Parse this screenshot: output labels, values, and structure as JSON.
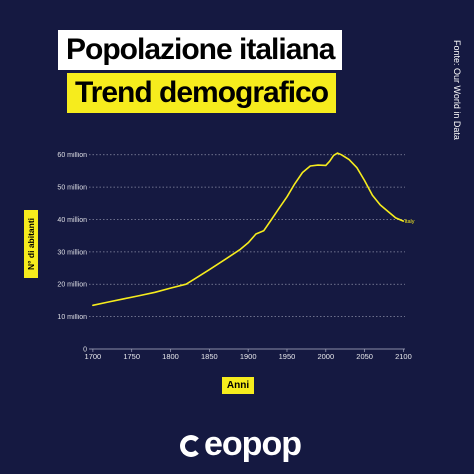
{
  "header": {
    "title": "Popolazione italiana",
    "subtitle": "Trend demografico"
  },
  "source": "Fonte: Our World in Data",
  "logo": {
    "text": "eopop",
    "accessible_name": "Geopop"
  },
  "colors": {
    "background": "#151941",
    "accent": "#f6ec1d",
    "line": "#f6ec1d",
    "grid": "#a8aac0",
    "text": "#ffffff"
  },
  "chart_data": {
    "type": "line",
    "title": "",
    "xlabel": "Anni",
    "ylabel": "N° di abitanti",
    "xlim": [
      1695,
      2102
    ],
    "ylim": [
      0,
      63
    ],
    "x_ticks": [
      1700,
      1750,
      1800,
      1850,
      1900,
      1950,
      2000,
      2050,
      2100
    ],
    "y_ticks": [
      0,
      10,
      20,
      30,
      40,
      50,
      60
    ],
    "y_tick_labels": [
      "0",
      "10 million",
      "20 million",
      "30 million",
      "40 million",
      "50 million",
      "60 million"
    ],
    "grid": "horizontal dotted",
    "series": [
      {
        "name": "Italy",
        "x": [
          1700,
          1720,
          1740,
          1760,
          1780,
          1800,
          1820,
          1830,
          1850,
          1870,
          1890,
          1900,
          1910,
          1920,
          1930,
          1940,
          1950,
          1960,
          1970,
          1975,
          1980,
          1990,
          2000,
          2005,
          2010,
          2015,
          2020,
          2030,
          2040,
          2050,
          2060,
          2070,
          2080,
          2090,
          2100
        ],
        "values": [
          13.5,
          14.5,
          15.5,
          16.5,
          17.5,
          18.8,
          20.0,
          21.5,
          24.5,
          27.6,
          30.8,
          32.8,
          35.5,
          36.5,
          40.0,
          43.5,
          47.0,
          51.0,
          54.5,
          55.5,
          56.5,
          56.8,
          56.7,
          58.0,
          59.8,
          60.5,
          60.0,
          58.5,
          56.0,
          52.0,
          47.5,
          44.5,
          42.5,
          40.5,
          39.5
        ]
      }
    ]
  }
}
